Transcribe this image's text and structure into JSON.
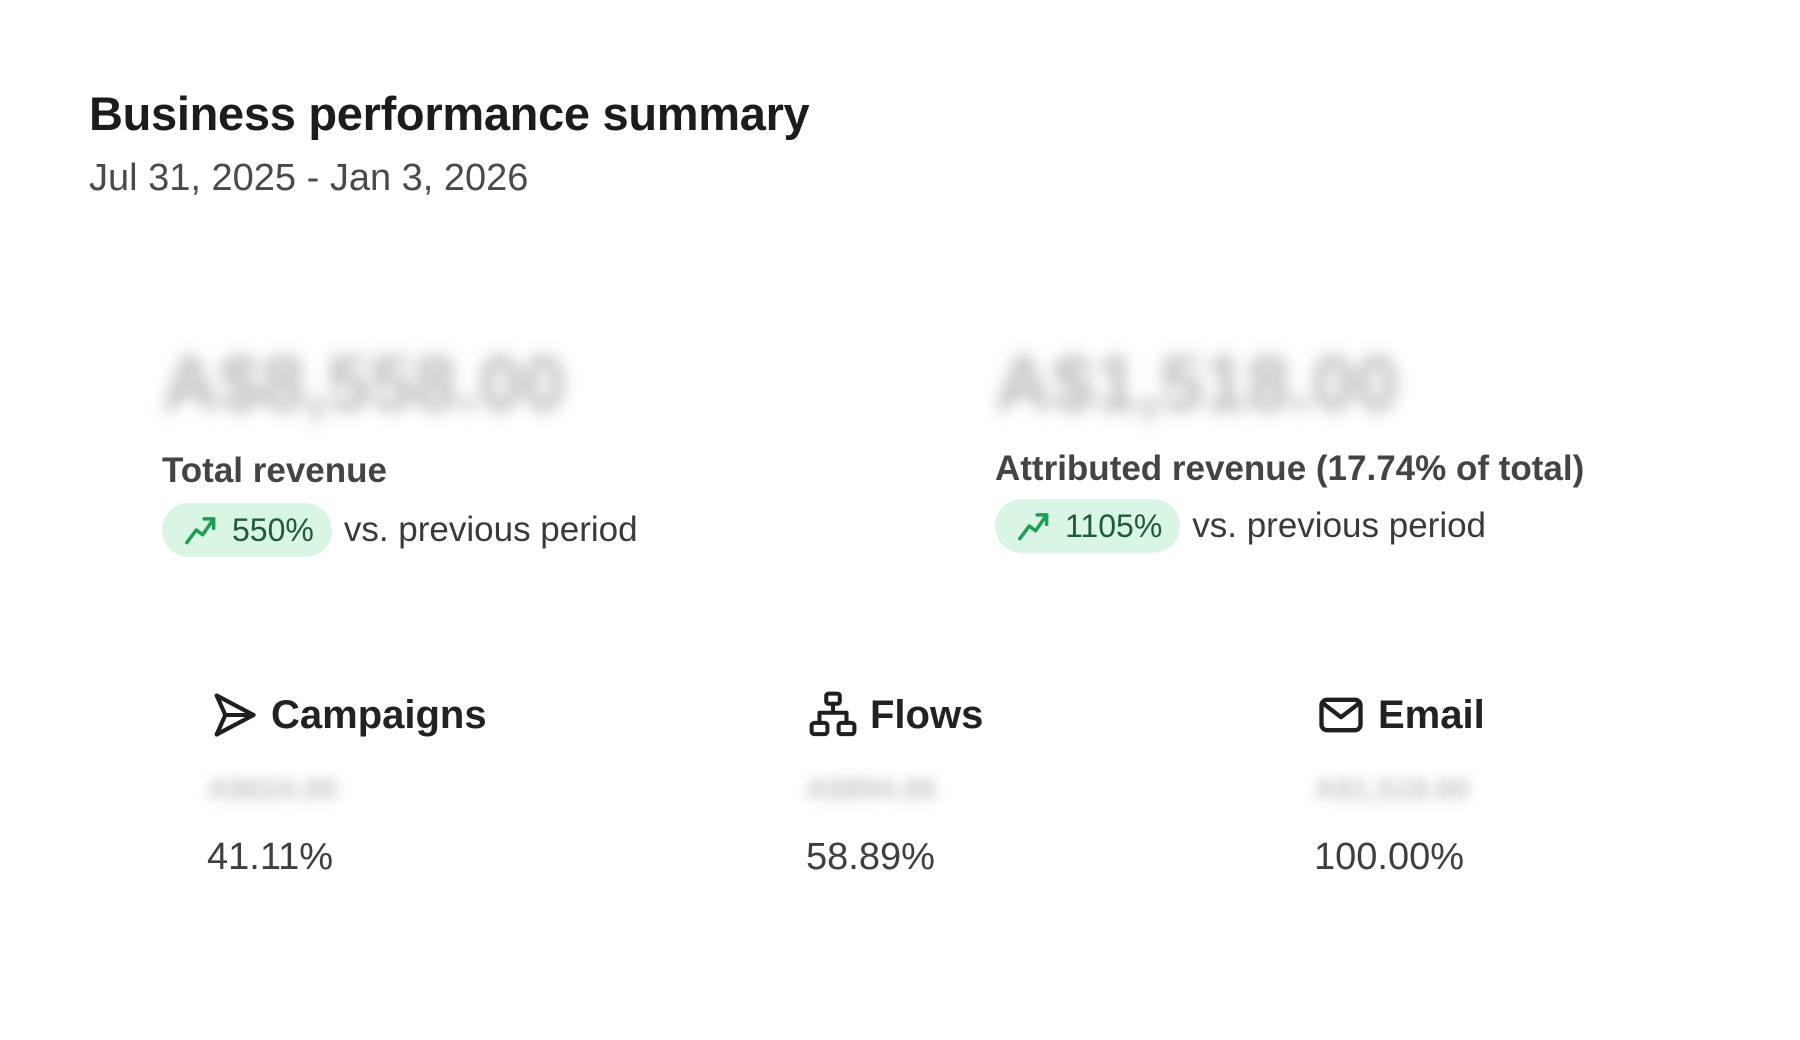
{
  "header": {
    "title": "Business performance summary",
    "date_range": "Jul 31, 2025 - Jan 3, 2026"
  },
  "kpis": {
    "total": {
      "value": "A$8,558.00",
      "label": "Total revenue",
      "change": "550%",
      "comparison": "vs. previous period",
      "trend_icon": "trending-up-icon"
    },
    "attributed": {
      "value": "A$1,518.00",
      "label": "Attributed revenue (17.74% of total)",
      "change": "1105%",
      "comparison": "vs. previous period",
      "trend_icon": "trending-up-icon"
    }
  },
  "channels": {
    "campaigns": {
      "name": "Campaigns",
      "icon": "send-icon",
      "revenue": "A$624.00",
      "share": "41.11%"
    },
    "flows": {
      "name": "Flows",
      "icon": "flow-icon",
      "revenue": "A$894.00",
      "share": "58.89%"
    },
    "email": {
      "name": "Email",
      "icon": "mail-icon",
      "revenue": "A$1,518.00",
      "share": "100.00%"
    }
  },
  "colors": {
    "positive_pill_bg": "#d9f6e4",
    "positive_accent": "#1f9d55"
  }
}
